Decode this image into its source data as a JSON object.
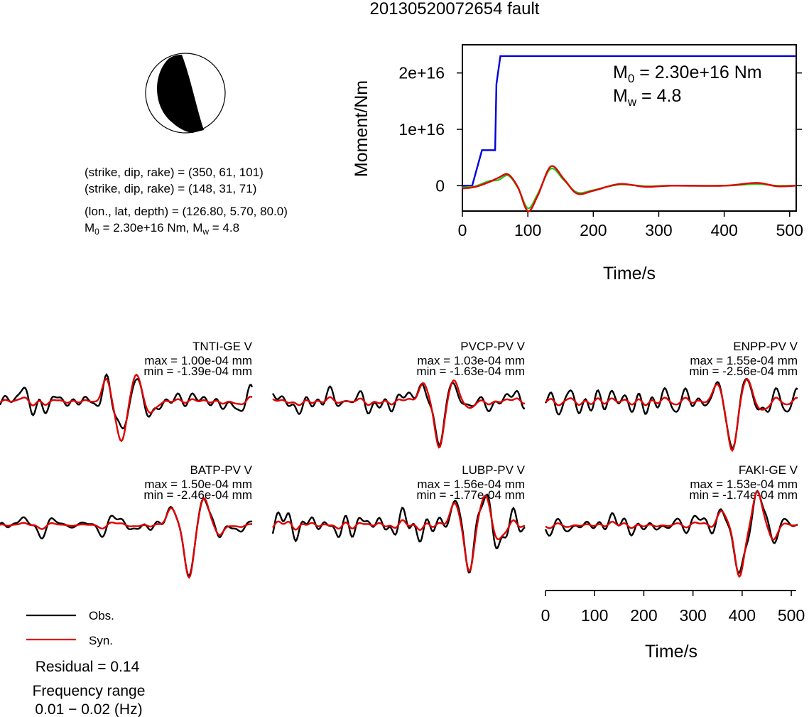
{
  "title": "20130520072654 fault",
  "colors": {
    "obs": "#000000",
    "syn": "#e00000",
    "moment": "#0000e0",
    "green": "#22cc22"
  },
  "mechanism": {
    "line1": "(strike, dip, rake) = (350, 61, 101)",
    "line2": "(strike, dip, rake) = (148, 31, 71)",
    "location": "(lon., lat, depth) = (126.80, 5.70, 80.0)",
    "moment_prefix": "M",
    "moment_sub": "0",
    "moment_rest": " = 2.30e+16 Nm, M",
    "mw_sub": "w",
    "mw_rest": " = 4.8"
  },
  "moment_plot": {
    "ylabel": "Moment/Nm",
    "xlabel": "Time/s",
    "m0_prefix": "M",
    "m0_sub": "0",
    "m0_rest": " = 2.30e+16 Nm",
    "mw_prefix": "M",
    "mw_sub": "w",
    "mw_rest": " = 4.8"
  },
  "stations": [
    {
      "name": "TNTI-GE V",
      "max": "max = 1.00e-04 mm",
      "min": "min = -1.39e-04 mm"
    },
    {
      "name": "PVCP-PV V",
      "max": "max = 1.03e-04 mm",
      "min": "min = -1.63e-04 mm"
    },
    {
      "name": "ENPP-PV V",
      "max": "max = 1.55e-04 mm",
      "min": "min = -2.56e-04 mm"
    },
    {
      "name": "BATP-PV V",
      "max": "max = 1.50e-04 mm",
      "min": "min = -2.46e-04 mm"
    },
    {
      "name": "LUBP-PV V",
      "max": "max = 1.56e-04 mm",
      "min": "min = -1.77e-04 mm"
    },
    {
      "name": "FAKI-GE V",
      "max": "max = 1.53e-04 mm",
      "min": "min = -1.74e-04 mm"
    }
  ],
  "waveform_axis": {
    "xlabel": "Time/s"
  },
  "legend": {
    "obs": "Obs.",
    "syn": "Syn."
  },
  "residual": "Residual = 0.14",
  "freq_title": "Frequency range",
  "freq_value": "0.01 − 0.02 (Hz)",
  "chart_data": [
    {
      "type": "line",
      "title": "",
      "xlabel": "Time/s",
      "ylabel": "Moment/Nm",
      "xlim": [
        0,
        510
      ],
      "ylim": [
        -4500000000000000.0,
        2.5e+16
      ],
      "xticks": [
        0,
        100,
        200,
        300,
        400,
        500
      ],
      "yticks": [
        0,
        1e+16,
        2e+16
      ],
      "ytick_labels": [
        "0",
        "1e+16",
        "2e+16"
      ],
      "grid": false,
      "series": [
        {
          "x": [
            0,
            15,
            30,
            32,
            50,
            52,
            58,
            510
          ],
          "values": [
            0,
            0,
            6300000000000000.0,
            6300000000000000.0,
            6300000000000000.0,
            1.8e+16,
            2.3e+16,
            2.3e+16
          ]
        },
        {
          "x": [
            0,
            20,
            40,
            55,
            70,
            85,
            100,
            115,
            135,
            155,
            175,
            200,
            240,
            280,
            320,
            400,
            450,
            480,
            510
          ],
          "values": [
            -300000000000000.0,
            -100000000000000.0,
            800000000000000.0,
            1000000000000000.0,
            1800000000000000.0,
            -400000000000000.0,
            -4000000000000000.0,
            -1500000000000000.0,
            3000000000000000.0,
            1000000000000000.0,
            -1200000000000000.0,
            -800000000000000.0,
            200000000000000.0,
            -100000000000000.0,
            0,
            0,
            300000000000000.0,
            0,
            0
          ]
        },
        {
          "x": [
            0,
            20,
            40,
            55,
            70,
            85,
            100,
            115,
            135,
            155,
            175,
            200,
            240,
            280,
            320,
            400,
            450,
            480,
            510
          ],
          "values": [
            -500000000000000.0,
            -200000000000000.0,
            600000000000000.0,
            1400000000000000.0,
            2000000000000000.0,
            -300000000000000.0,
            -4500000000000000.0,
            -1800000000000000.0,
            3400000000000000.0,
            1200000000000000.0,
            -1400000000000000.0,
            -900000000000000.0,
            300000000000000.0,
            -200000000000000.0,
            0,
            0,
            500000000000000.0,
            -100000000000000.0,
            0
          ]
        }
      ]
    },
    {
      "type": "line",
      "title": "",
      "xlabel": "Time/s",
      "xlim": [
        0,
        510
      ],
      "xticks": [
        0,
        100,
        200,
        300,
        400,
        500
      ],
      "grid": false
    }
  ]
}
